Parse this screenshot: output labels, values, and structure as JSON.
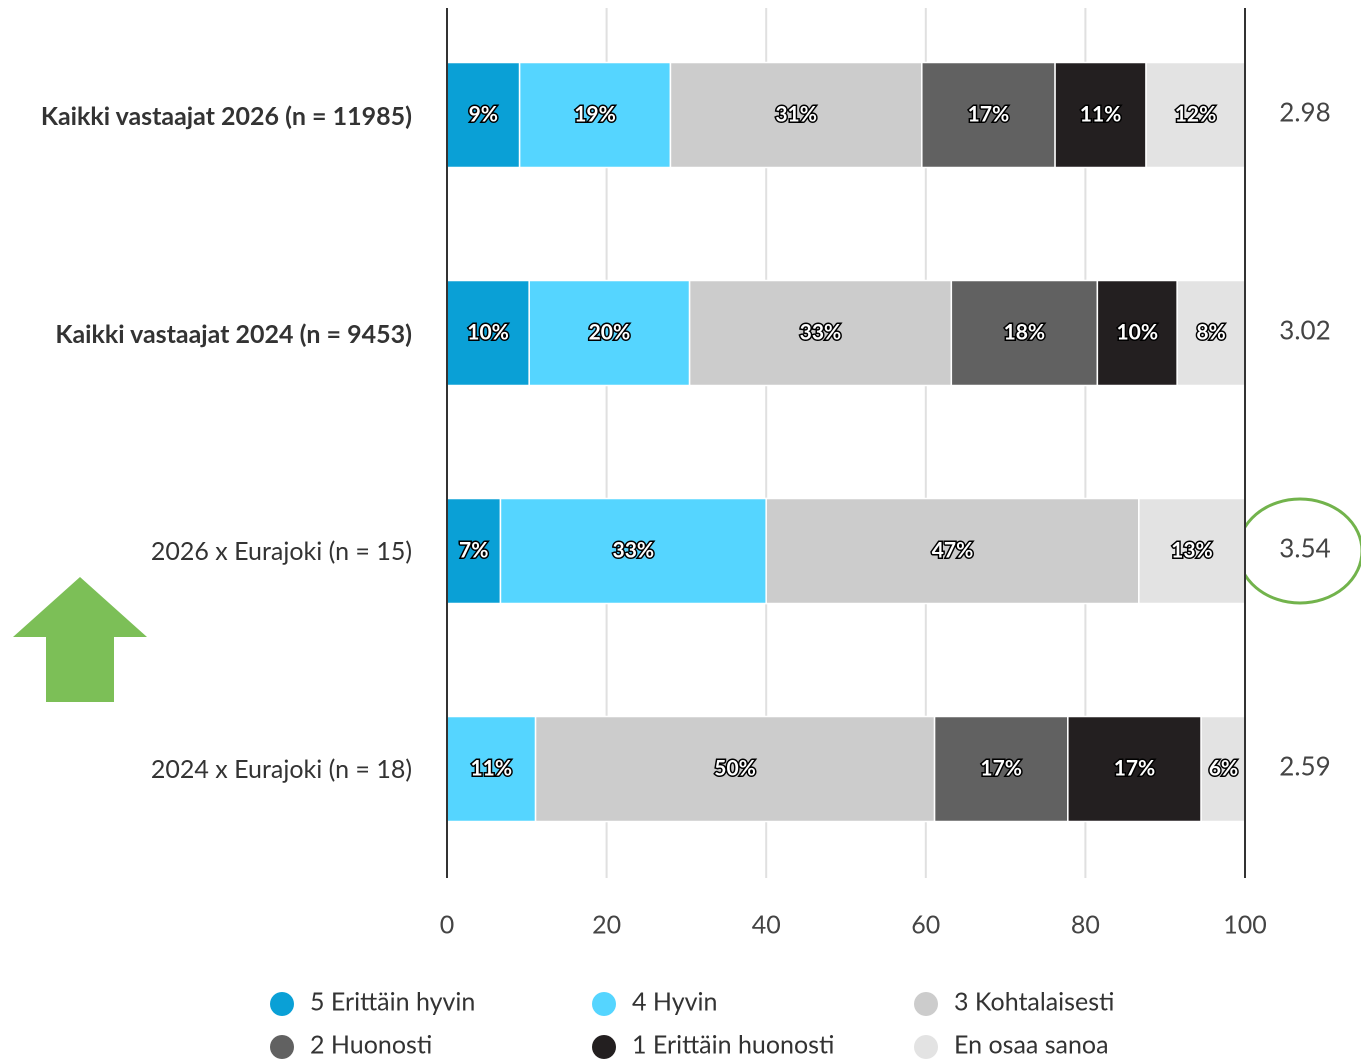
{
  "chart_data": {
    "type": "stacked_barh",
    "categories": [
      "Kaikki vastaajat 2026 (n = 11985)",
      "Kaikki vastaajat 2024 (n = 9453)",
      "2026 x Eurajoki (n = 15)",
      "2024 x Eurajoki (n = 18)"
    ],
    "series": [
      {
        "name": "5 Erittäin hyvin",
        "color": "#0aa0d6",
        "values": [
          9.1,
          10.3,
          6.7,
          0
        ],
        "value_labels": [
          "9%",
          "10%",
          "7%",
          null
        ]
      },
      {
        "name": "4 Hyvin",
        "color": "#55d5ff",
        "values": [
          18.9,
          20.1,
          33.3,
          11.1
        ],
        "value_labels": [
          "19%",
          "20%",
          "33%",
          "11%"
        ]
      },
      {
        "name": "3 Kohtalaisesti",
        "color": "#cccccc",
        "values": [
          31.5,
          32.8,
          46.7,
          50
        ],
        "value_labels": [
          "31%",
          "33%",
          "47%",
          "50%"
        ]
      },
      {
        "name": "2 Huonosti",
        "color": "#616161",
        "values": [
          16.7,
          18.3,
          0,
          16.7
        ],
        "value_labels": [
          "17%",
          "18%",
          null,
          "17%"
        ]
      },
      {
        "name": "1 Erittäin huonosti",
        "color": "#231f20",
        "values": [
          11.4,
          10.0,
          0,
          16.7
        ],
        "value_labels": [
          "11%",
          "10%",
          null,
          "17%"
        ]
      },
      {
        "name": "En osaa sanoa",
        "color": "#e3e3e3",
        "values": [
          12.4,
          8.5,
          13.3,
          5.6
        ],
        "value_labels": [
          "12%",
          "8%",
          "13%",
          "6%"
        ]
      }
    ],
    "means": [
      2.98,
      3.02,
      3.54,
      2.59
    ],
    "xlim": [
      0,
      100
    ],
    "xticks": [
      0,
      20,
      40,
      60,
      80,
      100
    ],
    "grid": true
  }
}
